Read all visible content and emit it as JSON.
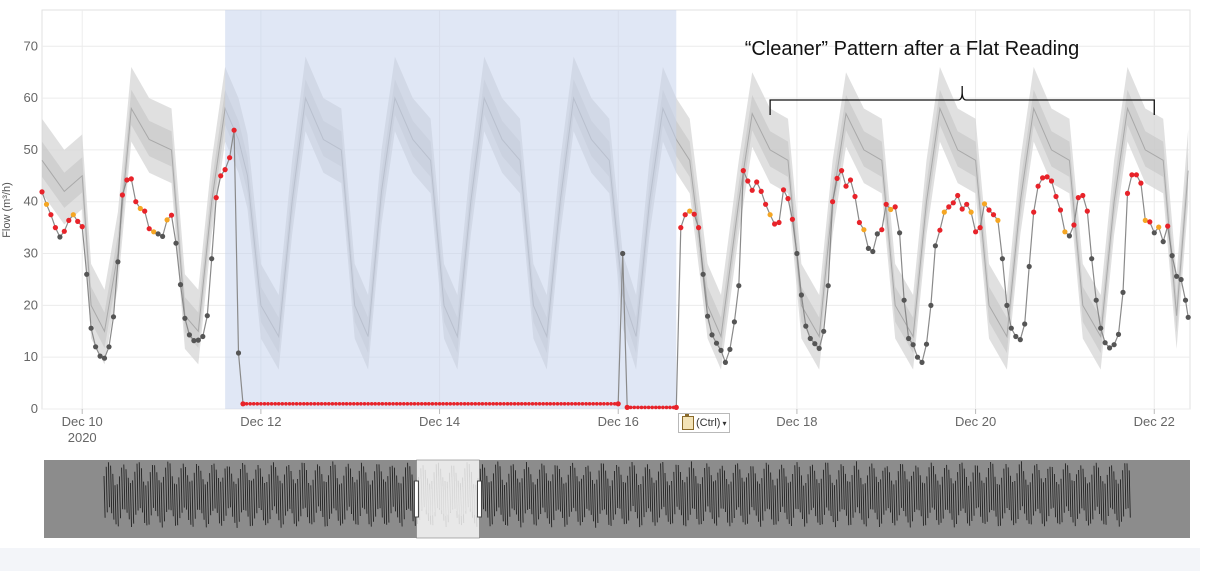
{
  "chart_data": {
    "type": "line",
    "title": "",
    "ylabel": "Flow (m³/h)",
    "ylim": [
      0,
      77
    ],
    "yticks": [
      "0",
      "10",
      "20",
      "30",
      "40",
      "50",
      "60",
      "70"
    ],
    "xlim": [
      9.55,
      22.4
    ],
    "xticks": [
      {
        "x": 10,
        "label": "Dec 10",
        "sub": "2020"
      },
      {
        "x": 12,
        "label": "Dec 12",
        "sub": ""
      },
      {
        "x": 14,
        "label": "Dec 14",
        "sub": ""
      },
      {
        "x": 16,
        "label": "Dec 16",
        "sub": ""
      },
      {
        "x": 18,
        "label": "Dec 18",
        "sub": ""
      },
      {
        "x": 20,
        "label": "Dec 20",
        "sub": ""
      },
      {
        "x": 22,
        "label": "Dec 22",
        "sub": ""
      }
    ],
    "highlight_range": [
      11.6,
      16.65
    ],
    "annotation": {
      "text": "“Cleaner” Pattern after a Flat Reading",
      "range": [
        17.7,
        22.0
      ]
    },
    "series": [
      {
        "values": [
          [
            9.55,
            41.9
          ],
          [
            9.6,
            39.5
          ],
          [
            9.65,
            37.5
          ],
          [
            9.7,
            35.0
          ],
          [
            9.75,
            33.2
          ],
          [
            9.8,
            34.3
          ],
          [
            9.85,
            36.4
          ],
          [
            9.9,
            37.5
          ],
          [
            9.95,
            36.2
          ],
          [
            10.0,
            35.2
          ],
          [
            10.05,
            26.0
          ],
          [
            10.1,
            15.6
          ],
          [
            10.15,
            12.0
          ],
          [
            10.2,
            10.2
          ],
          [
            10.25,
            9.8
          ],
          [
            10.3,
            12.0
          ],
          [
            10.35,
            17.8
          ],
          [
            10.4,
            28.4
          ],
          [
            10.45,
            41.3
          ],
          [
            10.5,
            44.2
          ],
          [
            10.55,
            44.4
          ],
          [
            10.6,
            40.0
          ],
          [
            10.65,
            38.7
          ],
          [
            10.7,
            38.2
          ],
          [
            10.75,
            34.8
          ],
          [
            10.8,
            34.2
          ],
          [
            10.85,
            33.8
          ],
          [
            10.9,
            33.3
          ],
          [
            10.95,
            36.5
          ],
          [
            11.0,
            37.4
          ],
          [
            11.05,
            32.0
          ],
          [
            11.1,
            24.0
          ],
          [
            11.15,
            17.5
          ],
          [
            11.2,
            14.3
          ],
          [
            11.25,
            13.2
          ],
          [
            11.3,
            13.3
          ],
          [
            11.35,
            14.0
          ],
          [
            11.4,
            18.0
          ],
          [
            11.45,
            29.0
          ],
          [
            11.5,
            40.8
          ],
          [
            11.55,
            45.0
          ],
          [
            11.6,
            46.2
          ],
          [
            11.65,
            48.5
          ],
          [
            11.7,
            53.8
          ],
          [
            11.75,
            10.8
          ],
          [
            11.8,
            1.0
          ],
          [
            16.0,
            1.0
          ],
          [
            16.05,
            30.0
          ],
          [
            16.1,
            0.3
          ],
          [
            16.65,
            0.3
          ],
          [
            16.7,
            35.0
          ],
          [
            16.75,
            37.5
          ],
          [
            16.8,
            38.2
          ],
          [
            16.85,
            37.6
          ],
          [
            16.9,
            35.0
          ],
          [
            16.95,
            26.0
          ],
          [
            17.0,
            17.9
          ],
          [
            17.05,
            14.3
          ],
          [
            17.1,
            12.7
          ],
          [
            17.15,
            11.3
          ],
          [
            17.2,
            9.0
          ],
          [
            17.25,
            11.5
          ],
          [
            17.3,
            16.8
          ],
          [
            17.35,
            23.8
          ],
          [
            17.4,
            46.0
          ],
          [
            17.45,
            44.0
          ],
          [
            17.5,
            42.2
          ],
          [
            17.55,
            43.8
          ],
          [
            17.6,
            42.0
          ],
          [
            17.65,
            39.5
          ],
          [
            17.7,
            37.5
          ],
          [
            17.75,
            35.7
          ],
          [
            17.8,
            36.0
          ],
          [
            17.85,
            42.3
          ],
          [
            17.9,
            40.6
          ],
          [
            17.95,
            36.6
          ],
          [
            18.0,
            30.0
          ],
          [
            18.05,
            22.0
          ],
          [
            18.1,
            16.0
          ],
          [
            18.15,
            13.6
          ],
          [
            18.2,
            12.6
          ],
          [
            18.25,
            11.7
          ],
          [
            18.3,
            15.0
          ],
          [
            18.35,
            23.8
          ],
          [
            18.4,
            40.0
          ],
          [
            18.45,
            44.5
          ],
          [
            18.5,
            46.0
          ],
          [
            18.55,
            43.0
          ],
          [
            18.6,
            44.2
          ],
          [
            18.65,
            41.0
          ],
          [
            18.7,
            36.0
          ],
          [
            18.75,
            34.6
          ],
          [
            18.8,
            31.0
          ],
          [
            18.85,
            30.4
          ],
          [
            18.9,
            33.8
          ],
          [
            18.95,
            34.6
          ],
          [
            19.0,
            39.5
          ],
          [
            19.05,
            38.5
          ],
          [
            19.1,
            39.0
          ],
          [
            19.15,
            34.0
          ],
          [
            19.2,
            21.0
          ],
          [
            19.25,
            13.6
          ],
          [
            19.3,
            12.4
          ],
          [
            19.35,
            10.0
          ],
          [
            19.4,
            9.0
          ],
          [
            19.45,
            12.5
          ],
          [
            19.5,
            20.0
          ],
          [
            19.55,
            31.5
          ],
          [
            19.6,
            34.5
          ],
          [
            19.65,
            38.0
          ],
          [
            19.7,
            39.0
          ],
          [
            19.75,
            39.8
          ],
          [
            19.8,
            41.2
          ],
          [
            19.85,
            38.6
          ],
          [
            19.9,
            39.5
          ],
          [
            19.95,
            38.0
          ],
          [
            20.0,
            34.2
          ],
          [
            20.05,
            35.0
          ],
          [
            20.1,
            39.6
          ],
          [
            20.15,
            38.4
          ],
          [
            20.2,
            37.5
          ],
          [
            20.25,
            36.4
          ],
          [
            20.3,
            29.0
          ],
          [
            20.35,
            20.0
          ],
          [
            20.4,
            15.6
          ],
          [
            20.45,
            14.0
          ],
          [
            20.5,
            13.4
          ],
          [
            20.55,
            16.4
          ],
          [
            20.6,
            27.5
          ],
          [
            20.65,
            38.0
          ],
          [
            20.7,
            43.0
          ],
          [
            20.75,
            44.6
          ],
          [
            20.8,
            44.8
          ],
          [
            20.85,
            44.0
          ],
          [
            20.9,
            41.0
          ],
          [
            20.95,
            38.4
          ],
          [
            21.0,
            34.2
          ],
          [
            21.05,
            33.4
          ],
          [
            21.1,
            35.5
          ],
          [
            21.15,
            40.8
          ],
          [
            21.2,
            41.2
          ],
          [
            21.25,
            38.2
          ],
          [
            21.3,
            29.0
          ],
          [
            21.35,
            21.0
          ],
          [
            21.4,
            15.6
          ],
          [
            21.45,
            12.8
          ],
          [
            21.5,
            11.8
          ],
          [
            21.55,
            12.4
          ],
          [
            21.6,
            14.4
          ],
          [
            21.65,
            22.5
          ],
          [
            21.7,
            41.6
          ],
          [
            21.75,
            45.2
          ],
          [
            21.8,
            45.2
          ],
          [
            21.85,
            43.6
          ],
          [
            21.9,
            36.4
          ],
          [
            21.95,
            36.1
          ],
          [
            22.0,
            34.0
          ],
          [
            22.05,
            35.1
          ],
          [
            22.1,
            32.3
          ],
          [
            22.15,
            35.3
          ],
          [
            22.2,
            29.6
          ],
          [
            22.25,
            25.6
          ],
          [
            22.3,
            25.0
          ],
          [
            22.35,
            21.0
          ],
          [
            22.38,
            17.7
          ]
        ],
        "marker_colors": {
          "normal": "#555555",
          "warning": "#f5a623",
          "alarm": "#e8232a"
        }
      }
    ],
    "expected_band": {
      "center": [
        [
          9.55,
          48
        ],
        [
          9.8,
          42
        ],
        [
          10.0,
          45
        ],
        [
          10.1,
          20
        ],
        [
          10.25,
          15
        ],
        [
          10.4,
          30
        ],
        [
          10.55,
          58
        ],
        [
          10.75,
          52
        ],
        [
          11.0,
          50
        ],
        [
          11.15,
          18
        ],
        [
          11.3,
          15
        ],
        [
          11.45,
          40
        ],
        [
          11.6,
          58
        ],
        [
          11.75,
          52
        ],
        [
          11.85,
          45
        ],
        [
          12.0,
          20
        ],
        [
          12.2,
          14
        ],
        [
          12.35,
          40
        ],
        [
          12.5,
          60
        ],
        [
          12.7,
          52
        ],
        [
          12.9,
          50
        ],
        [
          13.05,
          20
        ],
        [
          13.2,
          14
        ],
        [
          13.35,
          42
        ],
        [
          13.5,
          60
        ],
        [
          13.7,
          52
        ],
        [
          13.9,
          48
        ],
        [
          14.05,
          20
        ],
        [
          14.2,
          14
        ],
        [
          14.35,
          40
        ],
        [
          14.5,
          60
        ],
        [
          14.7,
          52
        ],
        [
          14.9,
          48
        ],
        [
          15.05,
          20
        ],
        [
          15.2,
          14
        ],
        [
          15.35,
          40
        ],
        [
          15.5,
          60
        ],
        [
          15.7,
          52
        ],
        [
          15.9,
          48
        ],
        [
          16.05,
          22
        ],
        [
          16.2,
          14
        ],
        [
          16.35,
          40
        ],
        [
          16.5,
          58
        ],
        [
          16.65,
          52
        ],
        [
          16.8,
          48
        ],
        [
          17.0,
          20
        ],
        [
          17.15,
          14
        ],
        [
          17.35,
          40
        ],
        [
          17.5,
          57
        ],
        [
          17.7,
          50
        ],
        [
          17.9,
          48
        ],
        [
          18.05,
          20
        ],
        [
          18.25,
          14
        ],
        [
          18.4,
          40
        ],
        [
          18.55,
          57
        ],
        [
          18.75,
          50
        ],
        [
          18.95,
          48
        ],
        [
          19.1,
          20
        ],
        [
          19.3,
          14
        ],
        [
          19.45,
          40
        ],
        [
          19.6,
          58
        ],
        [
          19.8,
          50
        ],
        [
          20.0,
          48
        ],
        [
          20.15,
          20
        ],
        [
          20.35,
          14
        ],
        [
          20.5,
          40
        ],
        [
          20.65,
          58
        ],
        [
          20.85,
          50
        ],
        [
          21.05,
          48
        ],
        [
          21.2,
          20
        ],
        [
          21.4,
          14
        ],
        [
          21.55,
          40
        ],
        [
          21.7,
          58
        ],
        [
          21.9,
          50
        ],
        [
          22.1,
          48
        ],
        [
          22.25,
          18
        ],
        [
          22.38,
          46
        ]
      ],
      "halfwidth": 8
    }
  },
  "navigator": {
    "background": "#8c8c8c",
    "window": [
      0.325,
      0.38
    ]
  },
  "paste_options": {
    "label": "(Ctrl)"
  }
}
